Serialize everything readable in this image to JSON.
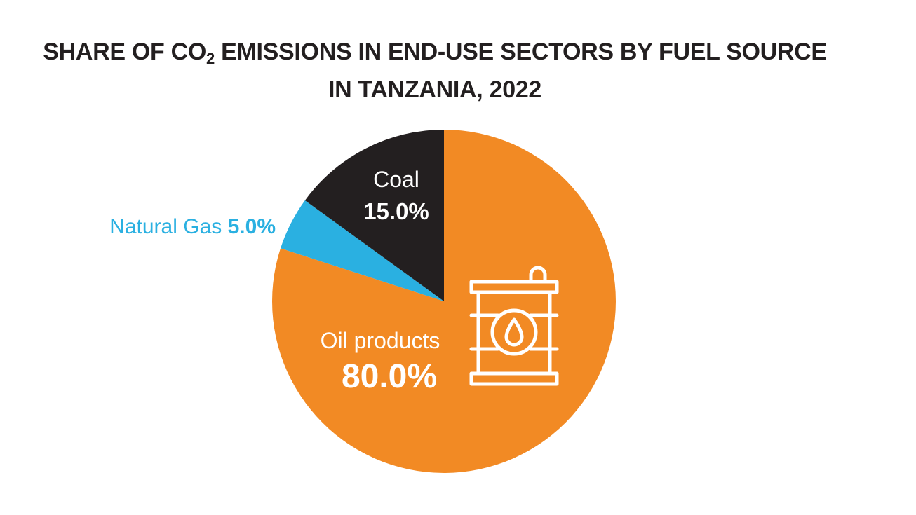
{
  "title": {
    "line1_before_sub": "SHARE OF CO",
    "line1_sub": "2",
    "line1_after_sub": " EMISSIONS IN END-USE SECTORS BY FUEL SOURCE",
    "line2": "IN TANZANIA, 2022"
  },
  "chart_data": {
    "type": "pie",
    "title": "SHARE OF CO2 EMISSIONS IN END-USE SECTORS BY FUEL SOURCE IN TANZANIA, 2022",
    "slices": [
      {
        "label": "Oil products",
        "value": 80.0,
        "display": "80.0%",
        "color": "#f28a24"
      },
      {
        "label": "Natural Gas",
        "value": 5.0,
        "display": "5.0%",
        "color": "#2ab0e1"
      },
      {
        "label": "Coal",
        "value": 15.0,
        "display": "15.0%",
        "color": "#231f20"
      }
    ],
    "icon": "oil-barrel-icon"
  }
}
